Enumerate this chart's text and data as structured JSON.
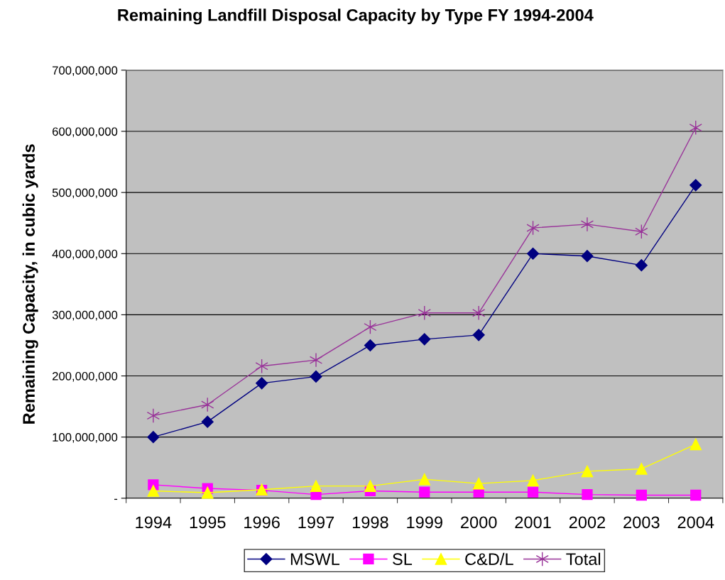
{
  "chart_data": {
    "type": "line",
    "title": "Remaining Landfill Disposal Capacity by Type FY 1994-2004",
    "ylabel": "Remaining Capacity, in cubic yards",
    "categories": [
      "1994",
      "1995",
      "1996",
      "1997",
      "1998",
      "1999",
      "2000",
      "2001",
      "2002",
      "2003",
      "2004"
    ],
    "series": [
      {
        "name": "MSWL",
        "color": "#000080",
        "marker": "diamond",
        "values": [
          100000000,
          125000000,
          188000000,
          199000000,
          250000000,
          260000000,
          267000000,
          400000000,
          396000000,
          381000000,
          512000000
        ]
      },
      {
        "name": "SL",
        "color": "#ff00ff",
        "marker": "square",
        "values": [
          22000000,
          16000000,
          13000000,
          6000000,
          12000000,
          10000000,
          10000000,
          10000000,
          6000000,
          5000000,
          5000000
        ]
      },
      {
        "name": "C&D/L",
        "color": "#ffff00",
        "marker": "triangle",
        "values": [
          12000000,
          9000000,
          14000000,
          20000000,
          20000000,
          31000000,
          24000000,
          29000000,
          44000000,
          48000000,
          88000000
        ]
      },
      {
        "name": "Total",
        "color": "#993399",
        "marker": "cross",
        "values": [
          135000000,
          153000000,
          216000000,
          226000000,
          280000000,
          303000000,
          303000000,
          442000000,
          448000000,
          436000000,
          606000000
        ]
      }
    ],
    "ylim": [
      0,
      700000000
    ],
    "yticks": [
      {
        "value": 0,
        "label": "-"
      },
      {
        "value": 100000000,
        "label": "100,000,000"
      },
      {
        "value": 200000000,
        "label": "200,000,000"
      },
      {
        "value": 300000000,
        "label": "300,000,000"
      },
      {
        "value": 400000000,
        "label": "400,000,000"
      },
      {
        "value": 500000000,
        "label": "500,000,000"
      },
      {
        "value": 600000000,
        "label": "600,000,000"
      },
      {
        "value": 700000000,
        "label": "700,000,000"
      }
    ],
    "grid": "y",
    "legend": "bottom",
    "line_style": "solid"
  }
}
